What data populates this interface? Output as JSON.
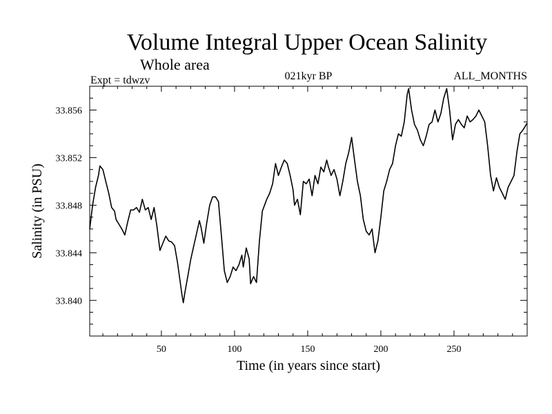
{
  "chart_data": {
    "type": "line",
    "title": "Volume Integral Upper Ocean Salinity",
    "subtitle": "Whole area",
    "header_left": "Expt = tdwzv",
    "header_center": "021kyr BP",
    "header_right": "ALL_MONTHS",
    "xlabel": "Time (in years since start)",
    "ylabel": "Salinity (in PSU)",
    "xlim": [
      1,
      300
    ],
    "ylim": [
      33.837,
      33.858
    ],
    "xticks": [
      50,
      100,
      150,
      200,
      250
    ],
    "xtick_labels": [
      "50",
      "100",
      "150",
      "200",
      "250"
    ],
    "yticks": [
      33.84,
      33.844,
      33.848,
      33.852,
      33.856
    ],
    "ytick_labels": [
      "33.840",
      "33.844",
      "33.848",
      "33.852",
      "33.856"
    ],
    "grid": false,
    "legend": "none",
    "series": [
      {
        "color": "#000000",
        "points": [
          [
            1,
            33.846
          ],
          [
            3,
            33.848
          ],
          [
            5,
            33.8495
          ],
          [
            7,
            33.8505
          ],
          [
            8,
            33.8513
          ],
          [
            10,
            33.851
          ],
          [
            12,
            33.85
          ],
          [
            14,
            33.849
          ],
          [
            16,
            33.8478
          ],
          [
            18,
            33.8475
          ],
          [
            19,
            33.8468
          ],
          [
            21,
            33.8464
          ],
          [
            23,
            33.846
          ],
          [
            25,
            33.8455
          ],
          [
            27,
            33.8466
          ],
          [
            29,
            33.8476
          ],
          [
            31,
            33.8476
          ],
          [
            33,
            33.8478
          ],
          [
            35,
            33.8474
          ],
          [
            37,
            33.8485
          ],
          [
            39,
            33.8476
          ],
          [
            41,
            33.8478
          ],
          [
            43,
            33.8468
          ],
          [
            45,
            33.8478
          ],
          [
            47,
            33.8462
          ],
          [
            49,
            33.8442
          ],
          [
            51,
            33.8448
          ],
          [
            53,
            33.8454
          ],
          [
            55,
            33.845
          ],
          [
            57,
            33.8449
          ],
          [
            59,
            33.8446
          ],
          [
            61,
            33.8432
          ],
          [
            63,
            33.8414
          ],
          [
            64,
            33.8405
          ],
          [
            65,
            33.8398
          ],
          [
            66,
            33.8406
          ],
          [
            68,
            33.842
          ],
          [
            70,
            33.8434
          ],
          [
            72,
            33.8445
          ],
          [
            74,
            33.8456
          ],
          [
            76,
            33.8467
          ],
          [
            77,
            33.8462
          ],
          [
            79,
            33.8448
          ],
          [
            81,
            33.8465
          ],
          [
            83,
            33.848
          ],
          [
            85,
            33.8487
          ],
          [
            87,
            33.8487
          ],
          [
            89,
            33.8483
          ],
          [
            91,
            33.8455
          ],
          [
            93,
            33.8425
          ],
          [
            95,
            33.8415
          ],
          [
            97,
            33.842
          ],
          [
            99,
            33.8428
          ],
          [
            101,
            33.8425
          ],
          [
            103,
            33.843
          ],
          [
            105,
            33.8438
          ],
          [
            106,
            33.8428
          ],
          [
            108,
            33.8444
          ],
          [
            110,
            33.8435
          ],
          [
            111,
            33.8414
          ],
          [
            113,
            33.842
          ],
          [
            115,
            33.8415
          ],
          [
            117,
            33.845
          ],
          [
            119,
            33.8475
          ],
          [
            122,
            33.8485
          ],
          [
            124,
            33.849
          ],
          [
            126,
            33.8498
          ],
          [
            128,
            33.8515
          ],
          [
            130,
            33.8505
          ],
          [
            132,
            33.8512
          ],
          [
            134,
            33.8518
          ],
          [
            136,
            33.8515
          ],
          [
            138,
            33.8505
          ],
          [
            140,
            33.8493
          ],
          [
            141,
            33.848
          ],
          [
            143,
            33.8485
          ],
          [
            145,
            33.8472
          ],
          [
            147,
            33.85
          ],
          [
            149,
            33.8498
          ],
          [
            151,
            33.8502
          ],
          [
            153,
            33.8488
          ],
          [
            155,
            33.8505
          ],
          [
            157,
            33.8498
          ],
          [
            159,
            33.8512
          ],
          [
            161,
            33.8508
          ],
          [
            163,
            33.8518
          ],
          [
            164,
            33.8513
          ],
          [
            166,
            33.8505
          ],
          [
            168,
            33.851
          ],
          [
            170,
            33.8502
          ],
          [
            172,
            33.8488
          ],
          [
            174,
            33.85
          ],
          [
            176,
            33.8515
          ],
          [
            178,
            33.8524
          ],
          [
            180,
            33.8537
          ],
          [
            182,
            33.8518
          ],
          [
            184,
            33.85
          ],
          [
            186,
            33.8488
          ],
          [
            188,
            33.8468
          ],
          [
            190,
            33.8458
          ],
          [
            192,
            33.8455
          ],
          [
            194,
            33.846
          ],
          [
            196,
            33.844
          ],
          [
            198,
            33.845
          ],
          [
            200,
            33.847
          ],
          [
            202,
            33.8492
          ],
          [
            204,
            33.85
          ],
          [
            206,
            33.851
          ],
          [
            208,
            33.8515
          ],
          [
            210,
            33.853
          ],
          [
            212,
            33.854
          ],
          [
            214,
            33.8538
          ],
          [
            216,
            33.855
          ],
          [
            218,
            33.8573
          ],
          [
            219,
            33.8578
          ],
          [
            221,
            33.856
          ],
          [
            223,
            33.8548
          ],
          [
            225,
            33.8543
          ],
          [
            227,
            33.8535
          ],
          [
            229,
            33.853
          ],
          [
            231,
            33.8538
          ],
          [
            233,
            33.8548
          ],
          [
            235,
            33.855
          ],
          [
            237,
            33.856
          ],
          [
            239,
            33.855
          ],
          [
            241,
            33.8557
          ],
          [
            243,
            33.857
          ],
          [
            245,
            33.8578
          ],
          [
            247,
            33.856
          ],
          [
            249,
            33.8535
          ],
          [
            251,
            33.8548
          ],
          [
            253,
            33.8552
          ],
          [
            255,
            33.8548
          ],
          [
            257,
            33.8545
          ],
          [
            259,
            33.8555
          ],
          [
            261,
            33.855
          ],
          [
            263,
            33.8552
          ],
          [
            265,
            33.8555
          ],
          [
            267,
            33.856
          ],
          [
            269,
            33.8555
          ],
          [
            271,
            33.855
          ],
          [
            273,
            33.853
          ],
          [
            275,
            33.8505
          ],
          [
            277,
            33.8492
          ],
          [
            279,
            33.8503
          ],
          [
            281,
            33.8495
          ],
          [
            283,
            33.849
          ],
          [
            285,
            33.8485
          ],
          [
            287,
            33.8495
          ],
          [
            289,
            33.85
          ],
          [
            291,
            33.8505
          ],
          [
            293,
            33.8525
          ],
          [
            295,
            33.854
          ],
          [
            297,
            33.8543
          ],
          [
            299,
            33.8547
          ],
          [
            300,
            33.8549
          ]
        ]
      }
    ]
  }
}
